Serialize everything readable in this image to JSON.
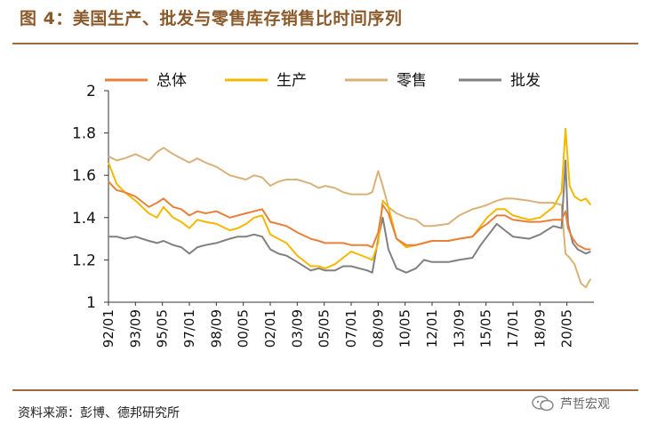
{
  "title": "图 4：美国生产、批发与零售库存销售比时间序列",
  "source": "资料来源：彭博、德邦研究所",
  "watermark": "芦哲宏观",
  "chart_data": {
    "type": "line",
    "title": "美国生产、批发与零售库存销售比时间序列",
    "xlabel": "",
    "ylabel": "",
    "ylim": [
      1,
      2
    ],
    "yticks": [
      "1",
      "1.2",
      "1.4",
      "1.6",
      "1.8",
      "2"
    ],
    "x_tick_labels": [
      "92/01",
      "93/09",
      "95/05",
      "97/01",
      "98/09",
      "00/05",
      "02/01",
      "03/09",
      "05/05",
      "07/01",
      "08/09",
      "10/05",
      "12/01",
      "13/09",
      "15/05",
      "17/01",
      "18/09",
      "20/05"
    ],
    "x_range": [
      1992.0,
      2022.0
    ],
    "legend_position": "top",
    "series": [
      {
        "name": "总体",
        "color": "#E8803A",
        "points": [
          [
            1992.0,
            1.57
          ],
          [
            1992.5,
            1.53
          ],
          [
            1993.0,
            1.52
          ],
          [
            1993.67,
            1.5
          ],
          [
            1994.5,
            1.45
          ],
          [
            1995.0,
            1.47
          ],
          [
            1995.4,
            1.49
          ],
          [
            1996.0,
            1.45
          ],
          [
            1996.5,
            1.44
          ],
          [
            1997.0,
            1.41
          ],
          [
            1997.5,
            1.43
          ],
          [
            1998.0,
            1.42
          ],
          [
            1998.67,
            1.43
          ],
          [
            1999.5,
            1.4
          ],
          [
            2000.0,
            1.41
          ],
          [
            2000.5,
            1.42
          ],
          [
            2001.0,
            1.43
          ],
          [
            2001.5,
            1.44
          ],
          [
            2002.0,
            1.38
          ],
          [
            2002.5,
            1.37
          ],
          [
            2003.0,
            1.36
          ],
          [
            2003.67,
            1.33
          ],
          [
            2004.5,
            1.3
          ],
          [
            2005.0,
            1.29
          ],
          [
            2005.4,
            1.28
          ],
          [
            2006.0,
            1.28
          ],
          [
            2006.5,
            1.28
          ],
          [
            2007.0,
            1.27
          ],
          [
            2008.0,
            1.27
          ],
          [
            2008.3,
            1.26
          ],
          [
            2008.67,
            1.33
          ],
          [
            2008.95,
            1.46
          ],
          [
            2009.3,
            1.42
          ],
          [
            2009.8,
            1.3
          ],
          [
            2010.4,
            1.27
          ],
          [
            2011.0,
            1.27
          ],
          [
            2011.5,
            1.28
          ],
          [
            2012.0,
            1.29
          ],
          [
            2013.0,
            1.29
          ],
          [
            2013.67,
            1.3
          ],
          [
            2014.5,
            1.31
          ],
          [
            2015.0,
            1.35
          ],
          [
            2015.4,
            1.37
          ],
          [
            2016.0,
            1.41
          ],
          [
            2016.5,
            1.41
          ],
          [
            2017.0,
            1.39
          ],
          [
            2018.0,
            1.38
          ],
          [
            2018.67,
            1.38
          ],
          [
            2019.5,
            1.39
          ],
          [
            2020.0,
            1.39
          ],
          [
            2020.25,
            1.43
          ],
          [
            2020.4,
            1.35
          ],
          [
            2020.7,
            1.3
          ],
          [
            2021.0,
            1.27
          ],
          [
            2021.5,
            1.25
          ],
          [
            2021.8,
            1.25
          ]
        ]
      },
      {
        "name": "生产",
        "color": "#F5B800",
        "points": [
          [
            1992.0,
            1.66
          ],
          [
            1992.5,
            1.56
          ],
          [
            1993.0,
            1.52
          ],
          [
            1993.67,
            1.48
          ],
          [
            1994.5,
            1.42
          ],
          [
            1995.0,
            1.4
          ],
          [
            1995.4,
            1.45
          ],
          [
            1996.0,
            1.4
          ],
          [
            1996.5,
            1.38
          ],
          [
            1997.0,
            1.35
          ],
          [
            1997.5,
            1.39
          ],
          [
            1998.0,
            1.38
          ],
          [
            1998.67,
            1.37
          ],
          [
            1999.5,
            1.34
          ],
          [
            2000.0,
            1.35
          ],
          [
            2000.5,
            1.37
          ],
          [
            2001.0,
            1.4
          ],
          [
            2001.5,
            1.41
          ],
          [
            2002.0,
            1.32
          ],
          [
            2002.5,
            1.3
          ],
          [
            2003.0,
            1.28
          ],
          [
            2003.67,
            1.22
          ],
          [
            2004.5,
            1.17
          ],
          [
            2005.0,
            1.17
          ],
          [
            2005.4,
            1.16
          ],
          [
            2006.0,
            1.18
          ],
          [
            2006.5,
            1.21
          ],
          [
            2007.0,
            1.24
          ],
          [
            2008.0,
            1.21
          ],
          [
            2008.3,
            1.2
          ],
          [
            2008.67,
            1.28
          ],
          [
            2008.95,
            1.48
          ],
          [
            2009.3,
            1.45
          ],
          [
            2009.8,
            1.3
          ],
          [
            2010.4,
            1.26
          ],
          [
            2011.0,
            1.27
          ],
          [
            2011.5,
            1.28
          ],
          [
            2012.0,
            1.29
          ],
          [
            2013.0,
            1.29
          ],
          [
            2013.67,
            1.3
          ],
          [
            2014.5,
            1.31
          ],
          [
            2015.0,
            1.36
          ],
          [
            2015.4,
            1.4
          ],
          [
            2016.0,
            1.44
          ],
          [
            2016.5,
            1.44
          ],
          [
            2017.0,
            1.41
          ],
          [
            2018.0,
            1.39
          ],
          [
            2018.67,
            1.4
          ],
          [
            2019.5,
            1.45
          ],
          [
            2020.0,
            1.52
          ],
          [
            2020.25,
            1.82
          ],
          [
            2020.5,
            1.55
          ],
          [
            2020.8,
            1.5
          ],
          [
            2021.2,
            1.48
          ],
          [
            2021.5,
            1.49
          ],
          [
            2021.8,
            1.46
          ]
        ]
      },
      {
        "name": "零售",
        "color": "#D9B27A",
        "points": [
          [
            1992.0,
            1.69
          ],
          [
            1992.5,
            1.67
          ],
          [
            1993.0,
            1.68
          ],
          [
            1993.67,
            1.7
          ],
          [
            1994.5,
            1.67
          ],
          [
            1995.0,
            1.71
          ],
          [
            1995.4,
            1.73
          ],
          [
            1996.0,
            1.7
          ],
          [
            1996.5,
            1.68
          ],
          [
            1997.0,
            1.66
          ],
          [
            1997.5,
            1.68
          ],
          [
            1998.0,
            1.66
          ],
          [
            1998.67,
            1.64
          ],
          [
            1999.5,
            1.6
          ],
          [
            2000.0,
            1.59
          ],
          [
            2000.5,
            1.58
          ],
          [
            2001.0,
            1.6
          ],
          [
            2001.5,
            1.59
          ],
          [
            2002.0,
            1.55
          ],
          [
            2002.5,
            1.57
          ],
          [
            2003.0,
            1.58
          ],
          [
            2003.67,
            1.58
          ],
          [
            2004.5,
            1.56
          ],
          [
            2005.0,
            1.54
          ],
          [
            2005.4,
            1.55
          ],
          [
            2006.0,
            1.54
          ],
          [
            2006.5,
            1.52
          ],
          [
            2007.0,
            1.51
          ],
          [
            2008.0,
            1.51
          ],
          [
            2008.3,
            1.52
          ],
          [
            2008.67,
            1.62
          ],
          [
            2008.95,
            1.55
          ],
          [
            2009.3,
            1.45
          ],
          [
            2009.8,
            1.42
          ],
          [
            2010.4,
            1.4
          ],
          [
            2011.0,
            1.39
          ],
          [
            2011.5,
            1.36
          ],
          [
            2012.0,
            1.36
          ],
          [
            2013.0,
            1.37
          ],
          [
            2013.67,
            1.41
          ],
          [
            2014.5,
            1.44
          ],
          [
            2015.0,
            1.45
          ],
          [
            2015.4,
            1.46
          ],
          [
            2016.0,
            1.48
          ],
          [
            2016.5,
            1.49
          ],
          [
            2017.0,
            1.49
          ],
          [
            2018.0,
            1.48
          ],
          [
            2018.67,
            1.47
          ],
          [
            2019.5,
            1.47
          ],
          [
            2020.0,
            1.46
          ],
          [
            2020.25,
            1.23
          ],
          [
            2020.5,
            1.21
          ],
          [
            2020.8,
            1.18
          ],
          [
            2021.2,
            1.09
          ],
          [
            2021.5,
            1.07
          ],
          [
            2021.8,
            1.11
          ]
        ]
      },
      {
        "name": "批发",
        "color": "#808080",
        "points": [
          [
            1992.0,
            1.31
          ],
          [
            1992.5,
            1.31
          ],
          [
            1993.0,
            1.3
          ],
          [
            1993.67,
            1.31
          ],
          [
            1994.5,
            1.29
          ],
          [
            1995.0,
            1.28
          ],
          [
            1995.4,
            1.29
          ],
          [
            1996.0,
            1.27
          ],
          [
            1996.5,
            1.26
          ],
          [
            1997.0,
            1.23
          ],
          [
            1997.5,
            1.26
          ],
          [
            1998.0,
            1.27
          ],
          [
            1998.67,
            1.28
          ],
          [
            1999.5,
            1.3
          ],
          [
            2000.0,
            1.31
          ],
          [
            2000.5,
            1.31
          ],
          [
            2001.0,
            1.32
          ],
          [
            2001.5,
            1.31
          ],
          [
            2002.0,
            1.25
          ],
          [
            2002.5,
            1.23
          ],
          [
            2003.0,
            1.22
          ],
          [
            2003.67,
            1.19
          ],
          [
            2004.5,
            1.15
          ],
          [
            2005.0,
            1.16
          ],
          [
            2005.4,
            1.15
          ],
          [
            2006.0,
            1.15
          ],
          [
            2006.5,
            1.17
          ],
          [
            2007.0,
            1.17
          ],
          [
            2008.0,
            1.15
          ],
          [
            2008.3,
            1.14
          ],
          [
            2008.67,
            1.3
          ],
          [
            2008.95,
            1.4
          ],
          [
            2009.3,
            1.25
          ],
          [
            2009.8,
            1.16
          ],
          [
            2010.4,
            1.14
          ],
          [
            2011.0,
            1.16
          ],
          [
            2011.5,
            1.2
          ],
          [
            2012.0,
            1.19
          ],
          [
            2013.0,
            1.19
          ],
          [
            2013.67,
            1.2
          ],
          [
            2014.5,
            1.21
          ],
          [
            2015.0,
            1.27
          ],
          [
            2015.4,
            1.31
          ],
          [
            2016.0,
            1.37
          ],
          [
            2016.5,
            1.34
          ],
          [
            2017.0,
            1.31
          ],
          [
            2018.0,
            1.3
          ],
          [
            2018.67,
            1.32
          ],
          [
            2019.5,
            1.36
          ],
          [
            2020.0,
            1.35
          ],
          [
            2020.25,
            1.67
          ],
          [
            2020.4,
            1.37
          ],
          [
            2020.7,
            1.28
          ],
          [
            2021.0,
            1.25
          ],
          [
            2021.5,
            1.23
          ],
          [
            2021.8,
            1.24
          ]
        ]
      }
    ]
  }
}
